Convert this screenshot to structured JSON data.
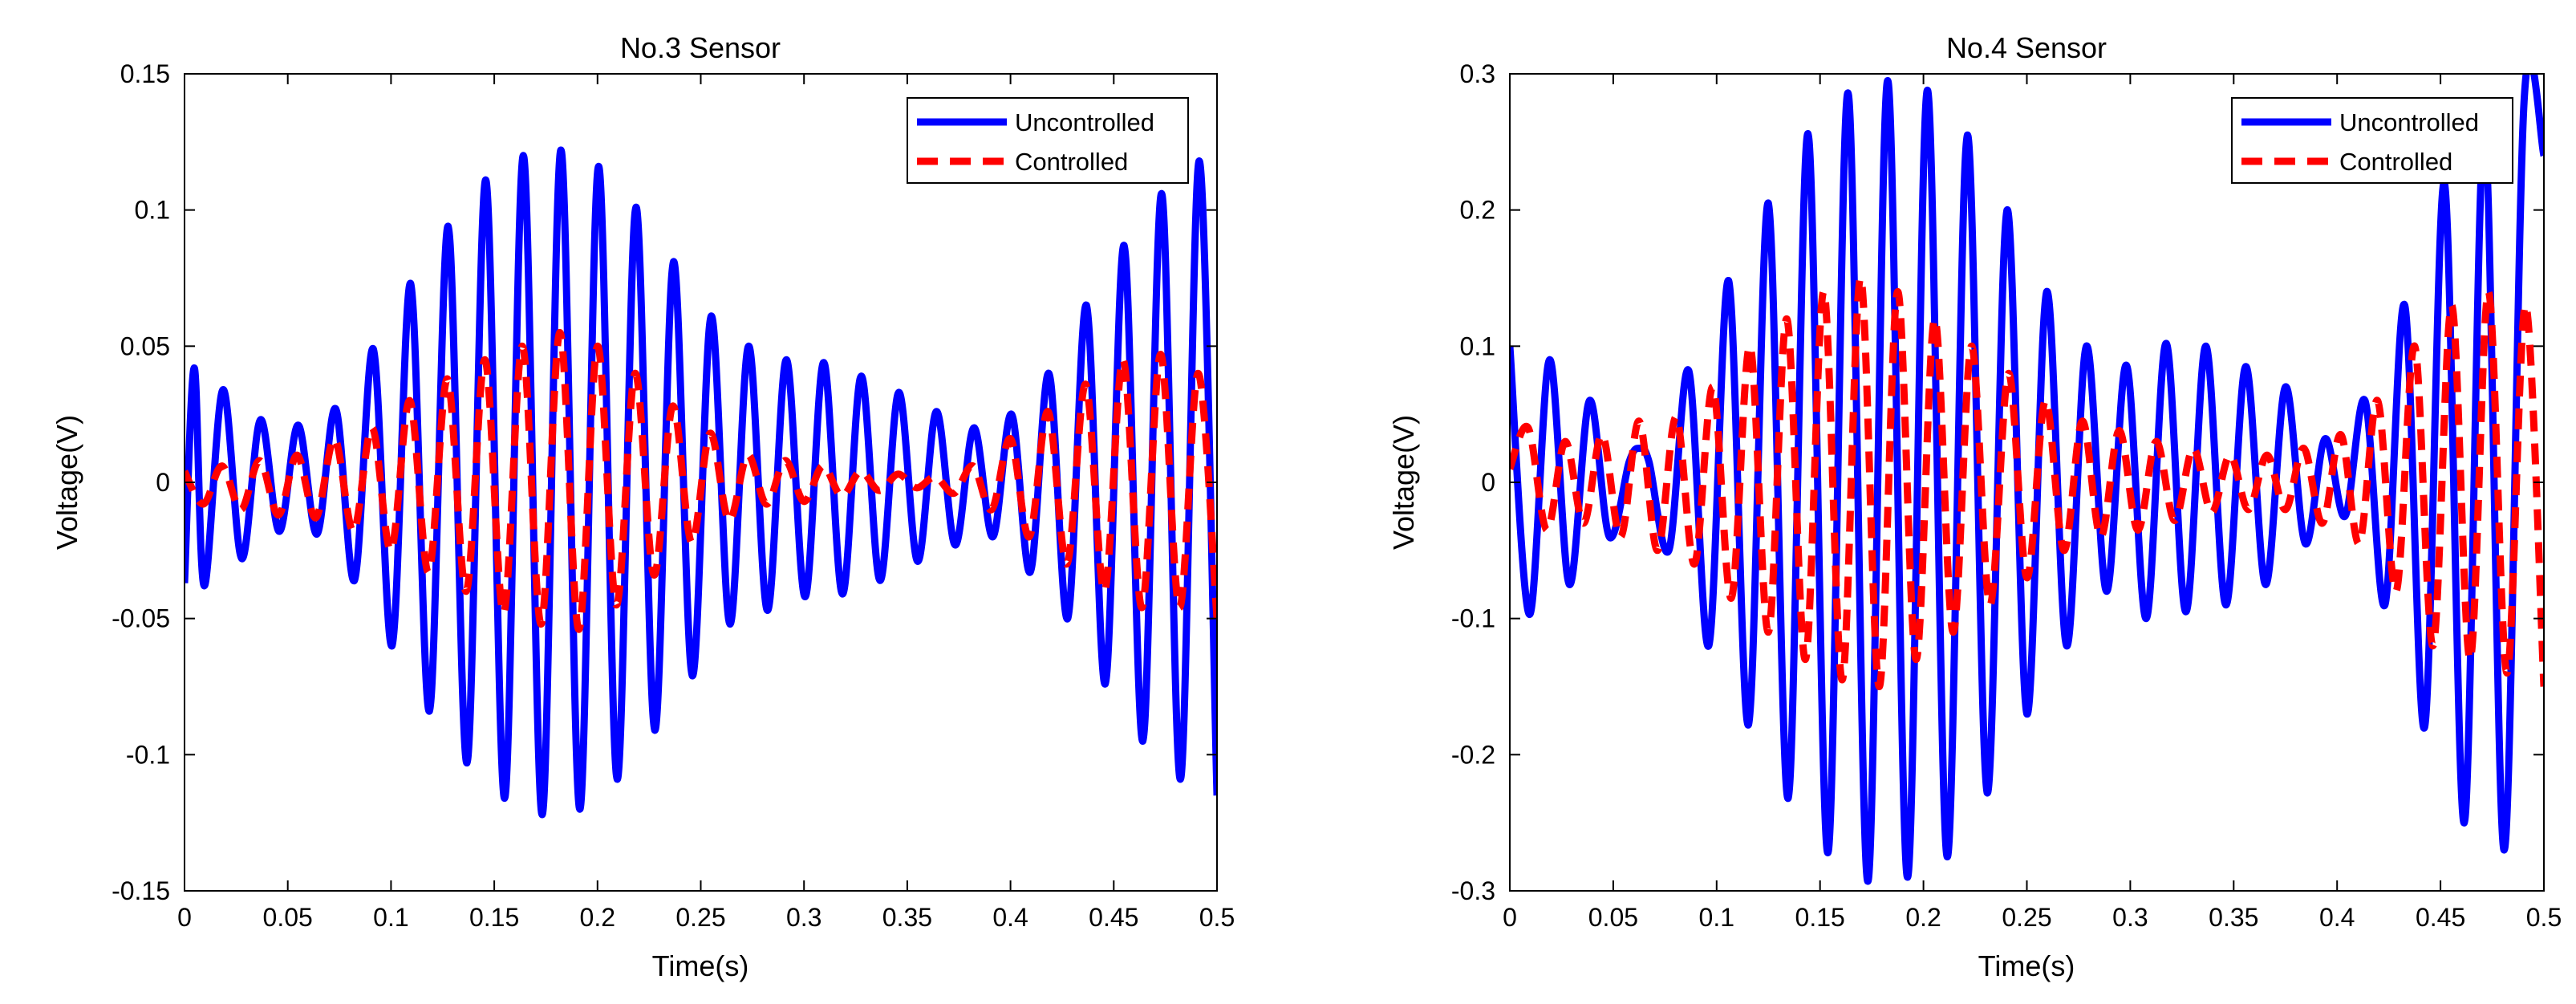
{
  "chart_data": [
    {
      "type": "line",
      "title": "No.3 Sensor",
      "xlabel": "Time(s)",
      "ylabel": "Voltage(V)",
      "xlim": [
        0,
        0.5
      ],
      "ylim": [
        -0.15,
        0.15
      ],
      "xticks": [
        0,
        0.05,
        0.1,
        0.15,
        0.2,
        0.25,
        0.3,
        0.35,
        0.4,
        0.45,
        0.5
      ],
      "xtick_labels": [
        "0",
        "0.05",
        "0.1",
        "0.15",
        "0.2",
        "0.25",
        "0.3",
        "0.35",
        "0.4",
        "0.45",
        "0.5"
      ],
      "yticks": [
        -0.15,
        -0.1,
        -0.05,
        0,
        0.05,
        0.1,
        0.15
      ],
      "ytick_labels": [
        "-0.15",
        "-0.1",
        "-0.05",
        "0",
        "0.05",
        "0.1",
        "0.15"
      ],
      "legend_position": "top-right",
      "series": [
        {
          "name": "Uncontrolled",
          "color": "#0000ff",
          "style": "solid",
          "x": [
            0,
            0.0047,
            0.0095,
            0.0186,
            0.0277,
            0.0368,
            0.0459,
            0.055,
            0.0641,
            0.0732,
            0.0823,
            0.0914,
            0.1005,
            0.1095,
            0.1186,
            0.1277,
            0.1368,
            0.1459,
            0.155,
            0.1641,
            0.1732,
            0.1823,
            0.1914,
            0.2005,
            0.2095,
            0.2186,
            0.2277,
            0.2368,
            0.2459,
            0.255,
            0.2641,
            0.2732,
            0.2823,
            0.2914,
            0.3005,
            0.3095,
            0.3186,
            0.3277,
            0.3368,
            0.3459,
            0.355,
            0.3641,
            0.3732,
            0.3823,
            0.3914,
            0.4005,
            0.4095,
            0.4186,
            0.4277,
            0.4368,
            0.4459,
            0.455,
            0.4641,
            0.4732,
            0.4823,
            0.4914,
            0.5
          ],
          "y": [
            -0.037,
            0.042,
            -0.038,
            0.034,
            -0.028,
            0.023,
            -0.018,
            0.021,
            -0.019,
            0.027,
            -0.036,
            0.049,
            -0.06,
            0.073,
            -0.084,
            0.094,
            -0.103,
            0.111,
            -0.116,
            0.12,
            -0.122,
            0.122,
            -0.12,
            0.116,
            -0.109,
            0.101,
            -0.091,
            0.081,
            -0.071,
            0.061,
            -0.052,
            0.05,
            -0.047,
            0.045,
            -0.042,
            0.044,
            -0.041,
            0.039,
            -0.036,
            0.033,
            -0.029,
            0.026,
            -0.023,
            0.02,
            -0.02,
            0.025,
            -0.033,
            0.04,
            -0.05,
            0.065,
            -0.074,
            0.087,
            -0.095,
            0.106,
            -0.109,
            0.118,
            -0.115
          ]
        },
        {
          "name": "Controlled",
          "color": "#ff0000",
          "style": "dashed",
          "x": [
            0,
            0.0091,
            0.0182,
            0.0273,
            0.0364,
            0.0455,
            0.0545,
            0.0636,
            0.0727,
            0.0818,
            0.0909,
            0.1,
            0.1091,
            0.1182,
            0.1273,
            0.1364,
            0.1455,
            0.1545,
            0.1636,
            0.1727,
            0.1818,
            0.1909,
            0.2,
            0.2091,
            0.2182,
            0.2273,
            0.2364,
            0.2455,
            0.2545,
            0.2636,
            0.2727,
            0.2818,
            0.2909,
            0.3,
            0.3091,
            0.3182,
            0.3273,
            0.3364,
            0.3455,
            0.3545,
            0.3636,
            0.3727,
            0.3818,
            0.3909,
            0.4,
            0.4091,
            0.4182,
            0.4273,
            0.4364,
            0.4455,
            0.4545,
            0.4636,
            0.4727,
            0.4818,
            0.4909,
            0.5
          ],
          "y": [
            0.004,
            -0.008,
            0.006,
            -0.01,
            0.008,
            -0.012,
            0.01,
            -0.013,
            0.016,
            -0.018,
            0.02,
            -0.025,
            0.03,
            -0.033,
            0.038,
            -0.04,
            0.045,
            -0.048,
            0.05,
            -0.052,
            0.055,
            -0.054,
            0.05,
            -0.045,
            0.04,
            -0.034,
            0.028,
            -0.022,
            0.018,
            -0.014,
            0.01,
            -0.008,
            0.008,
            -0.007,
            0.006,
            -0.005,
            0.004,
            -0.003,
            0.003,
            -0.002,
            0.002,
            -0.004,
            0.006,
            -0.01,
            0.016,
            -0.02,
            0.026,
            -0.03,
            0.036,
            -0.04,
            0.045,
            -0.046,
            0.047,
            -0.046,
            0.04,
            -0.05
          ]
        }
      ]
    },
    {
      "type": "line",
      "title": "No.4 Sensor",
      "xlabel": "Time(s)",
      "ylabel": "Voltage(V)",
      "xlim": [
        0,
        0.5
      ],
      "ylim": [
        -0.3,
        0.3
      ],
      "xticks": [
        0,
        0.05,
        0.1,
        0.15,
        0.2,
        0.25,
        0.3,
        0.35,
        0.4,
        0.45,
        0.5
      ],
      "xtick_labels": [
        "0",
        "0.05",
        "0.1",
        "0.15",
        "0.2",
        "0.25",
        "0.3",
        "0.35",
        "0.4",
        "0.45",
        "0.5"
      ],
      "yticks": [
        -0.3,
        -0.2,
        -0.1,
        0,
        0.1,
        0.2,
        0.3
      ],
      "ytick_labels": [
        "-0.3",
        "-0.2",
        "-0.1",
        "0",
        "0.1",
        "0.2",
        "0.3"
      ],
      "legend_position": "top-right",
      "series": [
        {
          "name": "Uncontrolled",
          "color": "#0000ff",
          "style": "solid",
          "x": [
            0,
            0.0095,
            0.0192,
            0.0288,
            0.0385,
            0.0481,
            0.0577,
            0.0627,
            0.0673,
            0.0769,
            0.0865,
            0.0962,
            0.1058,
            0.1154,
            0.125,
            0.1346,
            0.1442,
            0.1538,
            0.1635,
            0.1731,
            0.1827,
            0.1923,
            0.2019,
            0.2115,
            0.2212,
            0.2308,
            0.2404,
            0.25,
            0.2596,
            0.2692,
            0.2788,
            0.2885,
            0.2981,
            0.3077,
            0.3173,
            0.3269,
            0.3365,
            0.3462,
            0.3558,
            0.3654,
            0.375,
            0.3846,
            0.3942,
            0.4038,
            0.4135,
            0.4231,
            0.4327,
            0.4423,
            0.4519,
            0.4615,
            0.4712,
            0.4808,
            0.4904,
            0.5
          ],
          "y": [
            0.1,
            -0.097,
            0.09,
            -0.075,
            0.06,
            -0.04,
            0.015,
            0.025,
            0.015,
            -0.05,
            0.082,
            -0.12,
            0.148,
            -0.178,
            0.205,
            -0.232,
            0.256,
            -0.272,
            0.286,
            -0.293,
            0.295,
            -0.29,
            0.288,
            -0.275,
            0.255,
            -0.228,
            0.2,
            -0.17,
            0.14,
            -0.12,
            0.1,
            -0.08,
            0.086,
            -0.1,
            0.102,
            -0.095,
            0.1,
            -0.09,
            0.085,
            -0.075,
            0.07,
            -0.045,
            0.032,
            -0.025,
            0.06,
            -0.09,
            0.13,
            -0.18,
            0.22,
            -0.25,
            0.26,
            -0.27,
            0.28,
            0.24
          ]
        },
        {
          "name": "Controlled",
          "color": "#ff0000",
          "style": "dashed",
          "x": [
            0,
            0.0089,
            0.0179,
            0.0268,
            0.0357,
            0.0446,
            0.0536,
            0.0625,
            0.0714,
            0.0804,
            0.0893,
            0.0982,
            0.1071,
            0.1161,
            0.125,
            0.1339,
            0.1429,
            0.1518,
            0.1607,
            0.1696,
            0.1786,
            0.1875,
            0.1964,
            0.2054,
            0.2143,
            0.2232,
            0.2321,
            0.2411,
            0.25,
            0.2589,
            0.2679,
            0.2768,
            0.2857,
            0.2946,
            0.3036,
            0.3125,
            0.3214,
            0.3304,
            0.3393,
            0.3482,
            0.3571,
            0.3661,
            0.375,
            0.3839,
            0.3929,
            0.4018,
            0.4107,
            0.4196,
            0.4286,
            0.4375,
            0.4464,
            0.4554,
            0.4643,
            0.4732,
            0.4821,
            0.4911,
            0.5
          ],
          "y": [
            0.01,
            0.04,
            -0.035,
            0.03,
            -0.03,
            0.035,
            -0.04,
            0.045,
            -0.05,
            0.048,
            -0.06,
            0.07,
            -0.085,
            0.1,
            -0.11,
            0.12,
            -0.13,
            0.14,
            -0.145,
            0.15,
            -0.15,
            0.14,
            -0.13,
            0.12,
            -0.11,
            0.1,
            -0.09,
            0.08,
            -0.07,
            0.06,
            -0.05,
            0.045,
            -0.04,
            0.038,
            -0.035,
            0.03,
            -0.028,
            0.025,
            -0.022,
            0.02,
            -0.02,
            0.02,
            -0.02,
            0.025,
            -0.03,
            0.035,
            -0.045,
            0.06,
            -0.08,
            0.1,
            -0.12,
            0.13,
            -0.13,
            0.14,
            -0.14,
            0.13,
            -0.15
          ]
        }
      ]
    }
  ]
}
